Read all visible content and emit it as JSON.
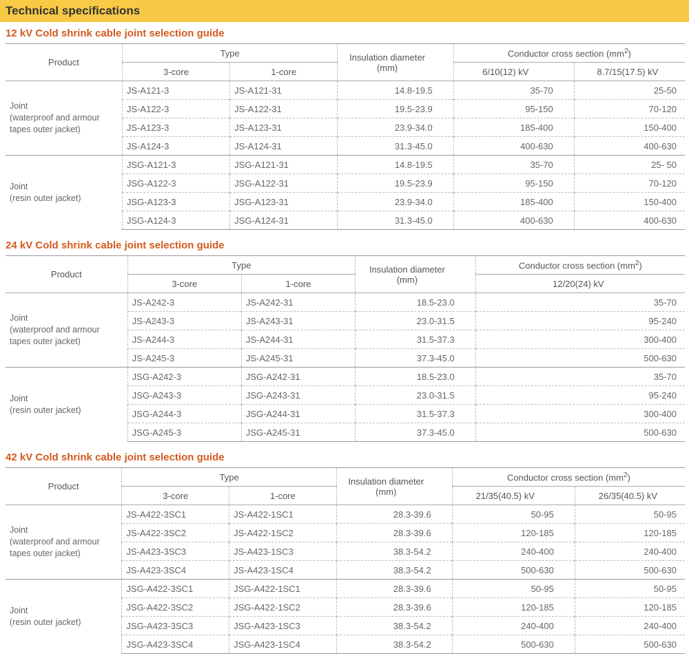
{
  "title": "Technical specifications",
  "header_bg": "#f7c945",
  "section_title_color": "#d45a1c",
  "labels": {
    "product": "Product",
    "type": "Type",
    "core3": "3-core",
    "core1": "1-core",
    "ins_dia": "Insulation diameter",
    "ins_dia_unit": "(mm)",
    "ccs": "Conductor cross section (mm",
    "ccs_sup": "2",
    "ccs_close": ")"
  },
  "tables": [
    {
      "title": "12 kV Cold shrink cable joint selection guide",
      "cc_headers": [
        "6/10(12) kV",
        "8.7/15(17.5) kV"
      ],
      "single_cc": false,
      "groups": [
        {
          "product": "Joint\n(waterproof and armour\ntapes outer jacket)",
          "rows": [
            [
              "JS-A121-3",
              "JS-A121-31",
              "14.8-19.5",
              "35-70",
              "25-50"
            ],
            [
              "JS-A122-3",
              "JS-A122-31",
              "19.5-23.9",
              "95-150",
              "70-120"
            ],
            [
              "JS-A123-3",
              "JS-A123-31",
              "23.9-34.0",
              "185-400",
              "150-400"
            ],
            [
              "JS-A124-3",
              "JS-A124-31",
              "31.3-45.0",
              "400-630",
              "400-630"
            ]
          ]
        },
        {
          "product": "Joint\n(resin outer jacket)",
          "rows": [
            [
              "JSG-A121-3",
              "JSG-A121-31",
              "14.8-19.5",
              "35-70",
              "25- 50"
            ],
            [
              "JSG-A122-3",
              "JSG-A122-31",
              "19.5-23.9",
              "95-150",
              "70-120"
            ],
            [
              "JSG-A123-3",
              "JSG-A123-31",
              "23.9-34.0",
              "185-400",
              "150-400"
            ],
            [
              "JSG-A124-3",
              "JSG-A124-31",
              "31.3-45.0",
              "400-630",
              "400-630"
            ]
          ]
        }
      ]
    },
    {
      "title": "24 kV Cold shrink cable joint selection guide",
      "cc_headers": [
        "12/20(24) kV"
      ],
      "single_cc": true,
      "groups": [
        {
          "product": "Joint\n(waterproof and armour\ntapes outer jacket)",
          "rows": [
            [
              "JS-A242-3",
              "JS-A242-31",
              "18.5-23.0",
              "35-70"
            ],
            [
              "JS-A243-3",
              "JS-A243-31",
              "23.0-31.5",
              "95-240"
            ],
            [
              "JS-A244-3",
              "JS-A244-31",
              "31.5-37.3",
              "300-400"
            ],
            [
              "JS-A245-3",
              "JS-A245-31",
              "37.3-45.0",
              "500-630"
            ]
          ]
        },
        {
          "product": "Joint\n(resin outer jacket)",
          "rows": [
            [
              "JSG-A242-3",
              "JSG-A242-31",
              "18.5-23.0",
              "35-70"
            ],
            [
              "JSG-A243-3",
              "JSG-A243-31",
              "23.0-31.5",
              "95-240"
            ],
            [
              "JSG-A244-3",
              "JSG-A244-31",
              "31.5-37.3",
              "300-400"
            ],
            [
              "JSG-A245-3",
              "JSG-A245-31",
              "37.3-45.0",
              "500-630"
            ]
          ]
        }
      ]
    },
    {
      "title": "42 kV Cold shrink cable joint selection guide",
      "cc_headers": [
        "21/35(40.5) kV",
        "26/35(40.5) kV"
      ],
      "single_cc": false,
      "groups": [
        {
          "product": "Joint\n(waterproof and armour\ntapes outer jacket)",
          "rows": [
            [
              "JS-A422-3SC1",
              "JS-A422-1SC1",
              "28.3-39.6",
              "50-95",
              "50-95"
            ],
            [
              "JS-A422-3SC2",
              "JS-A422-1SC2",
              "28.3-39.6",
              "120-185",
              "120-185"
            ],
            [
              "JS-A423-3SC3",
              "JS-A423-1SC3",
              "38.3-54.2",
              "240-400",
              "240-400"
            ],
            [
              "JS-A423-3SC4",
              "JS-A423-1SC4",
              "38.3-54.2",
              "500-630",
              "500-630"
            ]
          ]
        },
        {
          "product": "Joint\n(resin outer jacket)",
          "rows": [
            [
              "JSG-A422-3SC1",
              "JSG-A422-1SC1",
              "28.3-39.6",
              "50-95",
              "50-95"
            ],
            [
              "JSG-A422-3SC2",
              "JSG-A422-1SC2",
              "28.3-39.6",
              "120-185",
              "120-185"
            ],
            [
              "JSG-A423-3SC3",
              "JSG-A423-1SC3",
              "38.3-54.2",
              "240-400",
              "240-400"
            ],
            [
              "JSG-A423-3SC4",
              "JSG-A423-1SC4",
              "38.3-54.2",
              "500-630",
              "500-630"
            ]
          ]
        }
      ]
    }
  ]
}
